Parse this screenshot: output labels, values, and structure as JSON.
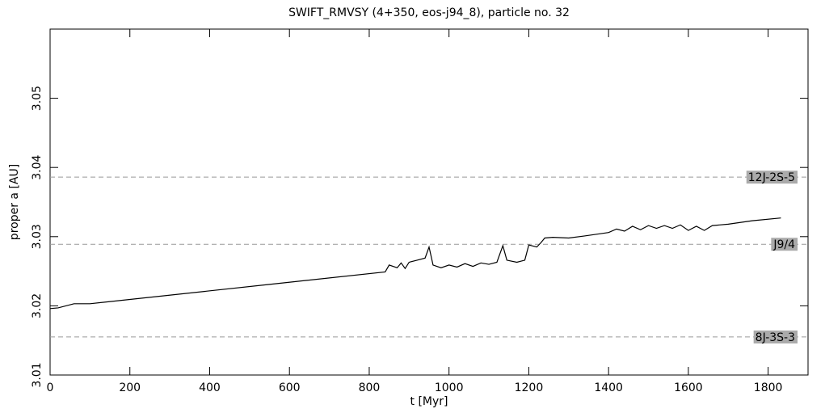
{
  "chart_data": {
    "type": "line",
    "title": "SWIFT_RMVSY (4+350, eos-j94_8), particle no. 32",
    "x_label": "t [Myr]",
    "y_label": "proper a [AU]",
    "xlim": [
      0,
      1900
    ],
    "ylim": [
      3.01,
      3.06
    ],
    "xticks": [
      0,
      200,
      400,
      600,
      800,
      1000,
      1200,
      1400,
      1600,
      1800
    ],
    "yticks": [
      3.01,
      3.02,
      3.03,
      3.04,
      3.05
    ],
    "series": [
      {
        "color": "#000000",
        "x": [
          0,
          20,
          60,
          100,
          550,
          840,
          850,
          870,
          880,
          890,
          900,
          920,
          940,
          950,
          960,
          980,
          1000,
          1020,
          1040,
          1060,
          1080,
          1100,
          1120,
          1135,
          1145,
          1170,
          1190,
          1200,
          1220,
          1230,
          1240,
          1260,
          1300,
          1340,
          1400,
          1420,
          1440,
          1460,
          1480,
          1500,
          1520,
          1540,
          1560,
          1580,
          1600,
          1620,
          1640,
          1660,
          1700,
          1760,
          1832
        ],
        "values": [
          3.0196,
          3.0197,
          3.0203,
          3.0203,
          3.0231,
          3.0249,
          3.0259,
          3.0255,
          3.0262,
          3.0254,
          3.0263,
          3.0266,
          3.0269,
          3.0285,
          3.0259,
          3.0255,
          3.0259,
          3.0256,
          3.0261,
          3.0257,
          3.0262,
          3.026,
          3.0263,
          3.0287,
          3.0266,
          3.0263,
          3.0266,
          3.0288,
          3.0285,
          3.0291,
          3.0298,
          3.0299,
          3.0298,
          3.0301,
          3.0306,
          3.0311,
          3.0308,
          3.0315,
          3.031,
          3.0316,
          3.0312,
          3.0316,
          3.0312,
          3.0317,
          3.0309,
          3.0315,
          3.0309,
          3.0316,
          3.0318,
          3.0323,
          3.0327
        ]
      }
    ],
    "resonances": [
      {
        "label": "12J-2S-5",
        "value": 3.0386
      },
      {
        "label": "J9/4",
        "value": 3.0289
      },
      {
        "label": "8J-3S-3",
        "value": 3.0155
      }
    ]
  }
}
